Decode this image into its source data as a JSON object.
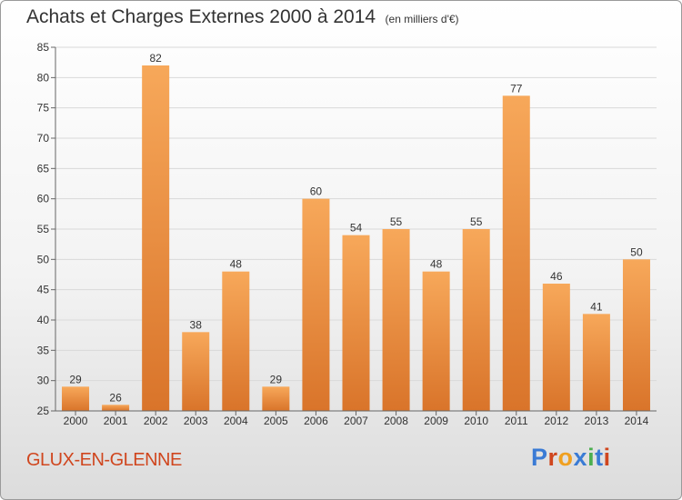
{
  "header": {
    "title": "Achats et Charges Externes 2000 à 2014",
    "subtitle": "(en milliers d'€)"
  },
  "footer": {
    "town": "GLUX-EN-GLENNE",
    "brand": "Proxiti",
    "brand_colors": [
      "#3a7bd5",
      "#d0461e",
      "#f0a020",
      "#3a7bd5",
      "#4caf50",
      "#3a7bd5",
      "#d0461e"
    ]
  },
  "colors": {
    "bar_light": "#f7a85a",
    "bar_dark": "#d9742a",
    "grid": "#d9d9d9",
    "axis": "#666666",
    "text": "#333333"
  },
  "chart_data": {
    "type": "bar",
    "categories": [
      "2000",
      "2001",
      "2002",
      "2003",
      "2004",
      "2005",
      "2006",
      "2007",
      "2008",
      "2009",
      "2010",
      "2011",
      "2012",
      "2013",
      "2014"
    ],
    "values": [
      29,
      26,
      82,
      38,
      48,
      29,
      60,
      54,
      55,
      48,
      55,
      77,
      46,
      41,
      50
    ],
    "title": "Achats et Charges Externes 2000 à 2014",
    "subtitle": "(en milliers d'€)",
    "xlabel": "",
    "ylabel": "",
    "ylim": [
      25,
      85
    ],
    "yticks": [
      25,
      30,
      35,
      40,
      45,
      50,
      55,
      60,
      65,
      70,
      75,
      80,
      85
    ],
    "grid": true,
    "data_labels": true
  }
}
